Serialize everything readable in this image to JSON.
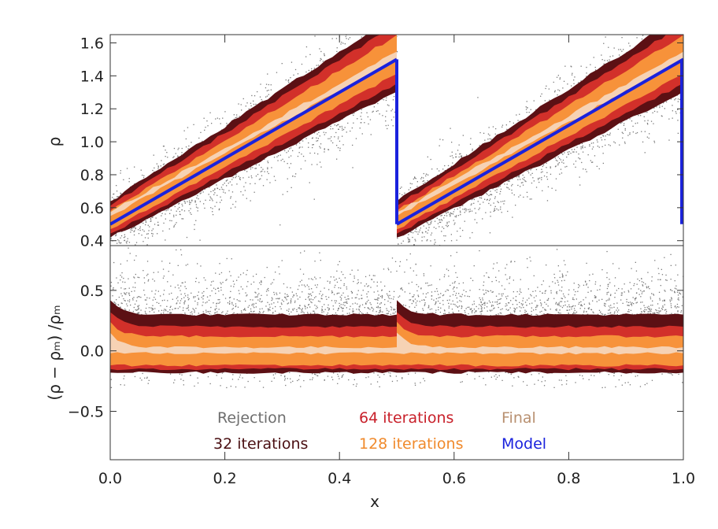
{
  "chart_data": [
    {
      "type": "scatter",
      "panel": "top",
      "ylabel": "ρ",
      "xlim": [
        0.0,
        1.0
      ],
      "ylim": [
        0.37,
        1.65
      ],
      "yticks": [
        0.4,
        0.6,
        0.8,
        1.0,
        1.2,
        1.4,
        1.6
      ],
      "ytick_labels": [
        "0.4",
        "0.6",
        "0.8",
        "1.0",
        "1.2",
        "1.4",
        "1.6"
      ],
      "model": {
        "name": "Model",
        "segments": [
          {
            "x": [
              0.0,
              0.5
            ],
            "y": [
              0.5,
              1.5
            ]
          },
          {
            "x": [
              0.5,
              1.0
            ],
            "y": [
              0.5,
              1.5
            ]
          }
        ],
        "drops": [
          {
            "x": 0.5,
            "y": [
              1.5,
              0.5
            ]
          },
          {
            "x": 1.0,
            "y": [
              1.5,
              0.5
            ]
          }
        ]
      },
      "series": [
        {
          "name": "Rejection",
          "spread": 0.35
        },
        {
          "name": "32 iterations",
          "spread": 0.22
        },
        {
          "name": "64 iterations",
          "spread": 0.16
        },
        {
          "name": "128 iterations",
          "spread": 0.1
        },
        {
          "name": "Final",
          "spread": 0.03
        }
      ]
    },
    {
      "type": "scatter",
      "panel": "bottom",
      "xlabel": "x",
      "ylabel": "(ρ − ρₘ) /ρₘ",
      "xlim": [
        0.0,
        1.0
      ],
      "ylim": [
        -0.9,
        0.87
      ],
      "xticks": [
        0.0,
        0.2,
        0.4,
        0.6,
        0.8,
        1.0
      ],
      "xtick_labels": [
        "0.0",
        "0.2",
        "0.4",
        "0.6",
        "0.8",
        "1.0"
      ],
      "yticks": [
        -0.5,
        0.0,
        0.5
      ],
      "ytick_labels": [
        "−0.5",
        "0.0",
        "0.5"
      ],
      "series": [
        {
          "name": "Rejection",
          "range": [
            -0.3,
            0.85
          ]
        },
        {
          "name": "32 iterations",
          "range": [
            -0.18,
            0.3
          ]
        },
        {
          "name": "64 iterations",
          "range": [
            -0.15,
            0.2
          ]
        },
        {
          "name": "128 iterations",
          "range": [
            -0.12,
            0.12
          ]
        },
        {
          "name": "Final",
          "range": [
            -0.02,
            0.03
          ]
        }
      ]
    }
  ],
  "legend": {
    "placement": "bottom panel, lower-center",
    "items": [
      {
        "label": "Rejection",
        "color": "#6e6e6e"
      },
      {
        "label": "64 iterations",
        "color": "#c8202a"
      },
      {
        "label": "Final",
        "color": "#b89070"
      },
      {
        "label": "32 iterations",
        "color": "#4a0f12"
      },
      {
        "label": "128 iterations",
        "color": "#f08a2c"
      },
      {
        "label": "Model",
        "color": "#1a22dd"
      }
    ]
  },
  "colors": {
    "rejection": "#7a7a7a",
    "it32": "#5c1014",
    "it64": "#d2302a",
    "it128": "#f7923a",
    "final": "#f6d2b4",
    "model": "#1a22dd"
  }
}
